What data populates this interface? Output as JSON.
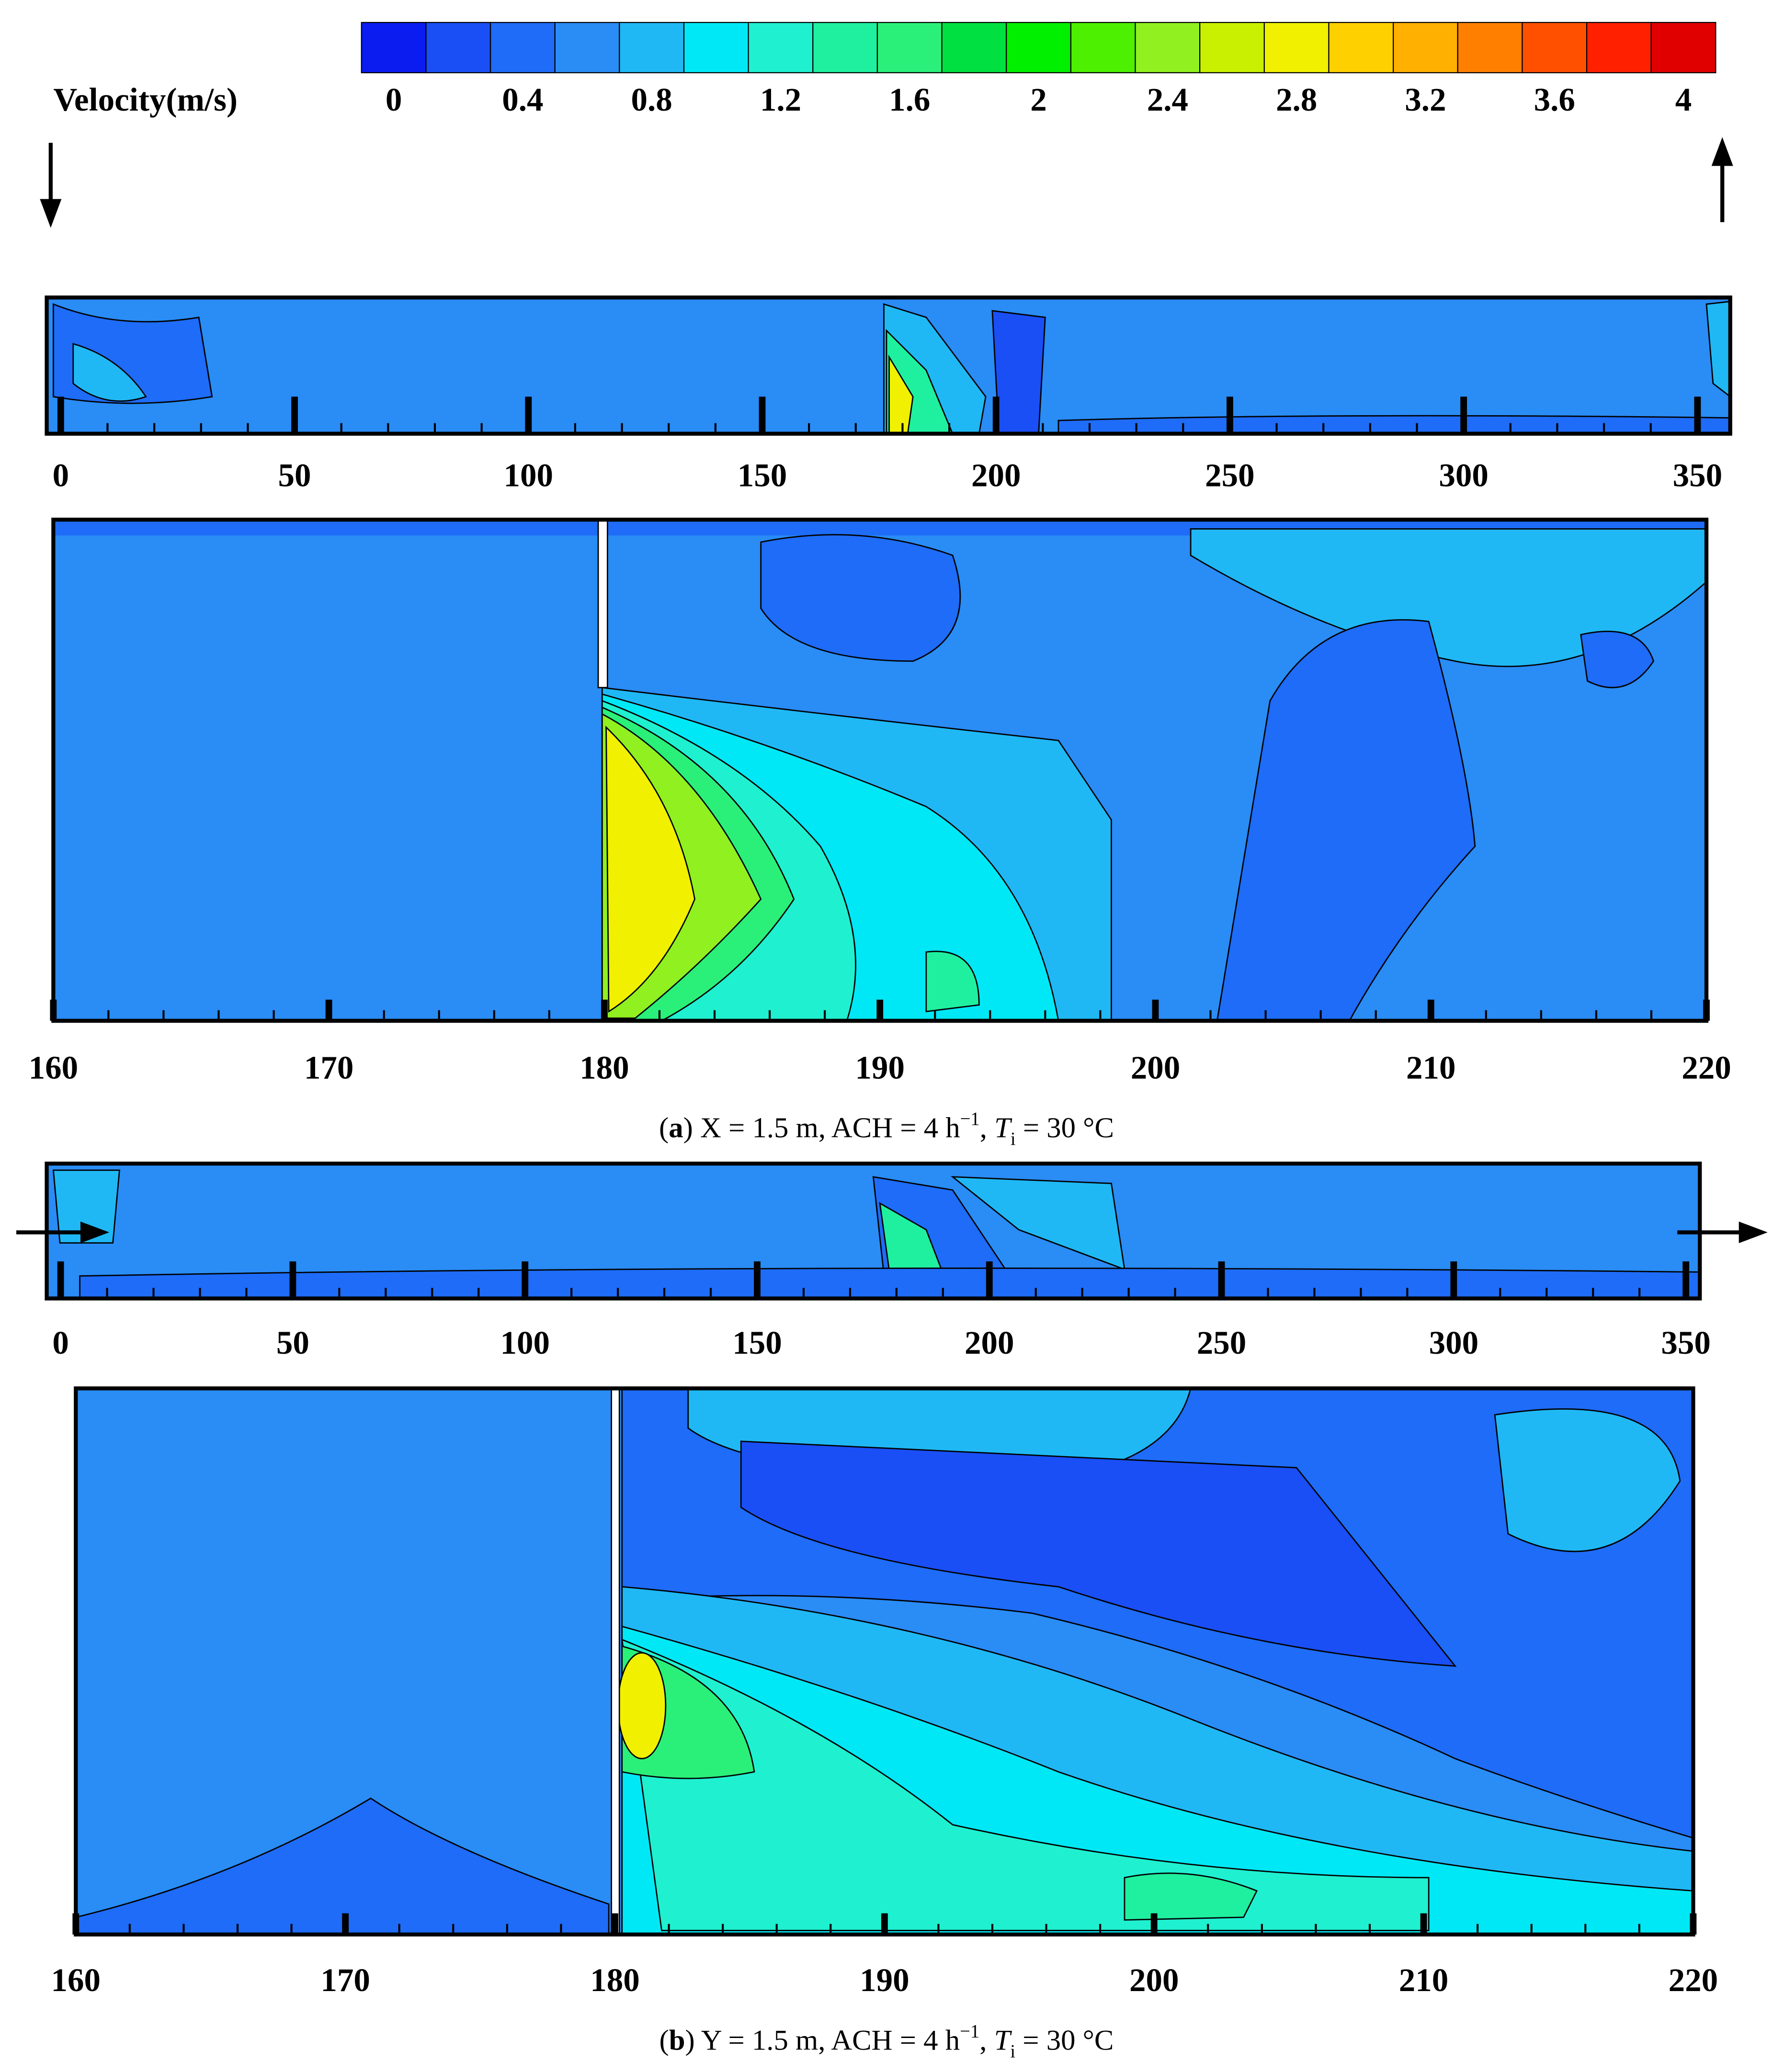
{
  "chart_data": {
    "type": "contour",
    "colorbar": {
      "title": "Velocity(m/s)",
      "lim": [
        -0.1,
        4.1
      ],
      "ticks": [
        0,
        0.4,
        0.8,
        1.2,
        1.6,
        2,
        2.4,
        2.8,
        3.2,
        3.6,
        4
      ],
      "colors": [
        "#0a1cf0",
        "#1a4ff5",
        "#1e6cf7",
        "#2a8cf5",
        "#1fb8f5",
        "#00e8f5",
        "#1ff0d0",
        "#1ff0a0",
        "#2af07a",
        "#00e040",
        "#00f000",
        "#4cf000",
        "#90f020",
        "#c8f000",
        "#f0f000",
        "#ffd000",
        "#ffb000",
        "#ff8000",
        "#ff5000",
        "#ff2000",
        "#e00000"
      ]
    },
    "panels": [
      {
        "caption": [
          {
            "text": "(",
            "style": "normal"
          },
          {
            "text": "a",
            "style": "bold"
          },
          {
            "text": ") X = 1.5 m, ACH = 4 h",
            "style": "normal"
          },
          {
            "text": "−1",
            "style": "sup"
          },
          {
            "text": ", ",
            "style": "normal"
          },
          {
            "text": "T",
            "style": "italic"
          },
          {
            "text": "i",
            "style": "sub"
          },
          {
            "text": " = 30 °C",
            "style": "normal"
          }
        ],
        "views": [
          {
            "xlim": [
              -3,
              357
            ],
            "xticks": [
              0,
              50,
              100,
              150,
              200,
              250,
              300,
              350
            ]
          },
          {
            "xlim": [
              160,
              220
            ],
            "xticks": [
              160,
              170,
              180,
              190,
              200,
              210,
              220
            ]
          }
        ]
      },
      {
        "caption": [
          {
            "text": "(",
            "style": "normal"
          },
          {
            "text": "b",
            "style": "bold"
          },
          {
            "text": ") Y = 1.5 m, ACH = 4 h",
            "style": "normal"
          },
          {
            "text": "−1",
            "style": "sup"
          },
          {
            "text": ", ",
            "style": "normal"
          },
          {
            "text": "T",
            "style": "italic"
          },
          {
            "text": "i",
            "style": "sub"
          },
          {
            "text": " = 30 °C",
            "style": "normal"
          }
        ],
        "views": [
          {
            "xlim": [
              -3,
              353
            ],
            "xticks": [
              0,
              50,
              100,
              150,
              200,
              250,
              300,
              350
            ]
          },
          {
            "xlim": [
              160,
              220
            ],
            "xticks": [
              160,
              170,
              180,
              190,
              200,
              210,
              220
            ]
          }
        ]
      }
    ]
  }
}
